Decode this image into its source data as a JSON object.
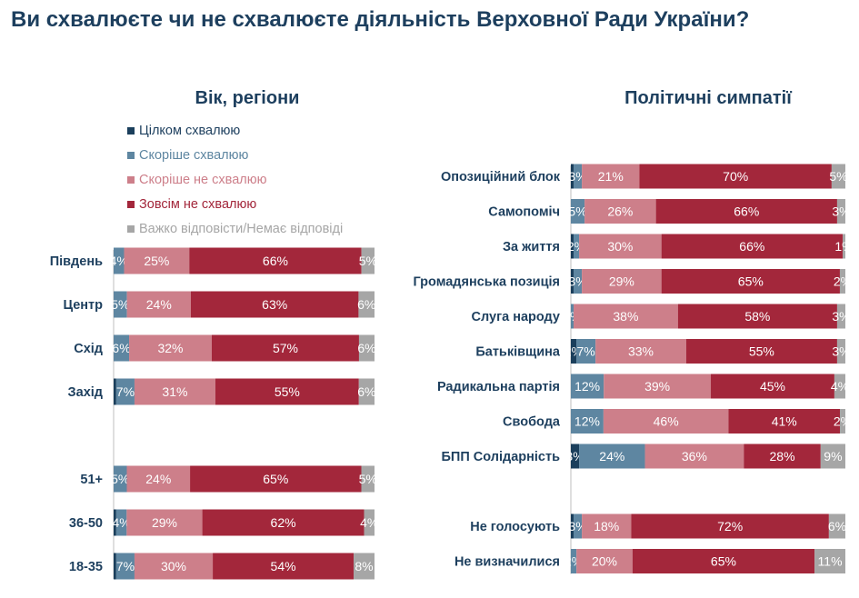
{
  "title": "Ви схвалюєте чи не схвалюєте діяльність Верховної Ради України?",
  "colors": {
    "fully_approve": "#1b3f5c",
    "rather_approve": "#5e86a1",
    "rather_disapprove": "#cd7f8a",
    "fully_disapprove": "#a3273b",
    "hard_to_say": "#a6a6a6"
  },
  "legend": [
    {
      "label": "Цілком схвалюю",
      "color": "#1b3f5c",
      "text_color": "#1d3f5e"
    },
    {
      "label": "Скоріше схвалюю",
      "color": "#5e86a1",
      "text_color": "#5e86a1"
    },
    {
      "label": "Скоріше не схвалюю",
      "color": "#cd7f8a",
      "text_color": "#cd7f8a"
    },
    {
      "label": "Зовсім не схвалюю",
      "color": "#a3273b",
      "text_color": "#a3273b"
    },
    {
      "label": "Важко відповісти/Немає відповіді",
      "color": "#a6a6a6",
      "text_color": "#a6a6a6"
    }
  ],
  "chart_data": [
    {
      "type": "bar",
      "stacked": true,
      "orientation": "horizontal",
      "title": "Вік, регіони",
      "series_names": [
        "Цілком схвалюю",
        "Скоріше схвалюю",
        "Скоріше не схвалюю",
        "Зовсім не схвалюю",
        "Важко відповісти/Немає відповіді"
      ],
      "rows": [
        {
          "label": "Південь",
          "values": [
            0,
            4,
            25,
            66,
            5
          ],
          "labels": [
            "",
            "4%",
            "25%",
            "66%",
            "5%"
          ]
        },
        {
          "label": "Центр",
          "values": [
            0,
            5,
            24,
            63,
            6
          ],
          "labels": [
            "",
            "5%",
            "24%",
            "63%",
            "6%"
          ]
        },
        {
          "label": "Схід",
          "values": [
            0,
            6,
            32,
            57,
            6
          ],
          "labels": [
            "",
            "6%",
            "32%",
            "57%",
            "6%"
          ]
        },
        {
          "label": "Захід",
          "values": [
            1,
            7,
            31,
            55,
            6
          ],
          "labels": [
            "",
            "7%",
            "31%",
            "55%",
            "6%"
          ]
        },
        {
          "label": "",
          "values": [],
          "labels": []
        },
        {
          "label": "51+",
          "values": [
            0,
            5,
            24,
            65,
            5
          ],
          "labels": [
            "",
            "5%",
            "24%",
            "65%",
            "5%"
          ]
        },
        {
          "label": "36-50",
          "values": [
            1,
            4,
            29,
            62,
            4
          ],
          "labels": [
            "",
            "4%",
            "29%",
            "62%",
            "4%"
          ]
        },
        {
          "label": "18-35",
          "values": [
            1,
            7,
            30,
            54,
            8
          ],
          "labels": [
            "",
            "7%",
            "30%",
            "54%",
            "8%"
          ]
        }
      ]
    },
    {
      "type": "bar",
      "stacked": true,
      "orientation": "horizontal",
      "title": "Політичні симпатії",
      "series_names": [
        "Цілком схвалюю",
        "Скоріше схвалюю",
        "Скоріше не схвалюю",
        "Зовсім не схвалюю",
        "Важко відповісти/Немає відповіді"
      ],
      "rows": [
        {
          "label": "Опозиційний блок",
          "values": [
            1,
            3,
            21,
            70,
            5
          ],
          "labels": [
            "",
            "3%",
            "21%",
            "70%",
            "5%"
          ]
        },
        {
          "label": "Самопоміч",
          "values": [
            0,
            5,
            26,
            66,
            3
          ],
          "labels": [
            "",
            "5%",
            "26%",
            "66%",
            "3%"
          ]
        },
        {
          "label": "За життя",
          "values": [
            1,
            2,
            30,
            66,
            1
          ],
          "labels": [
            "",
            "2%",
            "30%",
            "66%",
            "1%"
          ]
        },
        {
          "label": "Громадянська позиція",
          "values": [
            1,
            3,
            29,
            65,
            2
          ],
          "labels": [
            "",
            "3%",
            "29%",
            "65%",
            "2%"
          ]
        },
        {
          "label": "Слуга народу",
          "values": [
            0,
            1,
            38,
            58,
            3
          ],
          "labels": [
            "",
            "1%",
            "38%",
            "58%",
            "3%"
          ]
        },
        {
          "label": "Батьківщина",
          "values": [
            2,
            7,
            33,
            55,
            3
          ],
          "labels": [
            "2%",
            "7%",
            "33%",
            "55%",
            "3%"
          ]
        },
        {
          "label": "Радикальна партія",
          "values": [
            0,
            12,
            39,
            45,
            4
          ],
          "labels": [
            "",
            "12%",
            "39%",
            "45%",
            "4%"
          ]
        },
        {
          "label": "Свобода",
          "values": [
            0,
            12,
            46,
            41,
            2
          ],
          "labels": [
            "",
            "12%",
            "46%",
            "41%",
            "2%"
          ]
        },
        {
          "label": "БПП Солідарність",
          "values": [
            3,
            24,
            36,
            28,
            9
          ],
          "labels": [
            "3%",
            "24%",
            "36%",
            "28%",
            "9%"
          ]
        },
        {
          "label": "",
          "values": [],
          "labels": []
        },
        {
          "label": "Не голосують",
          "values": [
            1,
            3,
            18,
            72,
            6
          ],
          "labels": [
            "",
            "3%",
            "18%",
            "72%",
            "6%"
          ]
        },
        {
          "label": "Не визначилися",
          "values": [
            0,
            2,
            20,
            65,
            11
          ],
          "labels": [
            "",
            "2%",
            "20%",
            "65%",
            "11%"
          ]
        }
      ]
    }
  ]
}
